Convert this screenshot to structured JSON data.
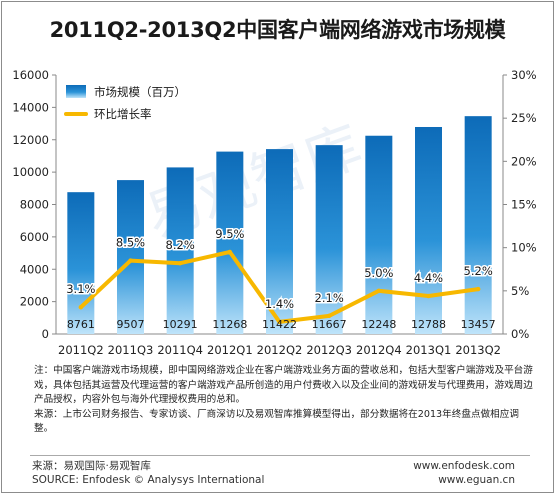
{
  "title": "2011Q2-2013Q2中国客户端网络游戏市场规模",
  "notes": [
    "注：中国客户端游戏市场规模，即中国网络游戏企业在客户端游戏业务方面的营收总和，包括大型客户端游戏及平台游戏，具体包括其运营及代理运营的客户端游戏产品所创造的用户付费收入以及企业间的游戏研发与代理费用，游戏周边产品授权，内容外包与海外代理授权费用的总和。",
    "来源：上市公司财务报告、专家访谈、厂商深访以及易观智库推算模型得出，部分数据将在2013年终盘点做相应调整。"
  ],
  "footer": {
    "source_cn": "来源：易观国际·易观智库",
    "source_en": "SOURCE: Enfodesk © Analysys International",
    "url1": "www.enfodesk.com",
    "url2": "www.eguan.cn"
  },
  "watermark": "易观智库",
  "chart_data": {
    "type": "bar",
    "categories": [
      "2011Q2",
      "2011Q3",
      "2011Q4",
      "2012Q1",
      "2012Q2",
      "2012Q3",
      "2012Q4",
      "2013Q1",
      "2013Q2"
    ],
    "series": [
      {
        "name": "市场规模（百万）",
        "type": "bar",
        "axis": "left",
        "values": [
          8761,
          9507,
          10291,
          11268,
          11422,
          11667,
          12248,
          12788,
          13457
        ],
        "labels": [
          "8761",
          "9507",
          "10291",
          "11268",
          "11422",
          "11667",
          "12248",
          "12788",
          "13457"
        ],
        "color": "#1a7fc8"
      },
      {
        "name": "环比增长率",
        "type": "line",
        "axis": "right",
        "values": [
          3.1,
          8.5,
          8.2,
          9.5,
          1.4,
          2.1,
          5.0,
          4.4,
          5.2
        ],
        "labels": [
          "3.1%",
          "8.5%",
          "8.2%",
          "9.5%",
          "1.4%",
          "2.1%",
          "5.0%",
          "4.4%",
          "5.2%"
        ],
        "color": "#f7b800"
      }
    ],
    "y_left": {
      "min": 0,
      "max": 16000,
      "ticks": [
        "0",
        "2000",
        "4000",
        "6000",
        "8000",
        "10000",
        "12000",
        "14000",
        "16000"
      ]
    },
    "y_right": {
      "min": 0,
      "max": 30,
      "ticks": [
        "0%",
        "5%",
        "10%",
        "15%",
        "20%",
        "25%",
        "30%"
      ]
    },
    "grid": false,
    "legend_position": "top-left"
  }
}
